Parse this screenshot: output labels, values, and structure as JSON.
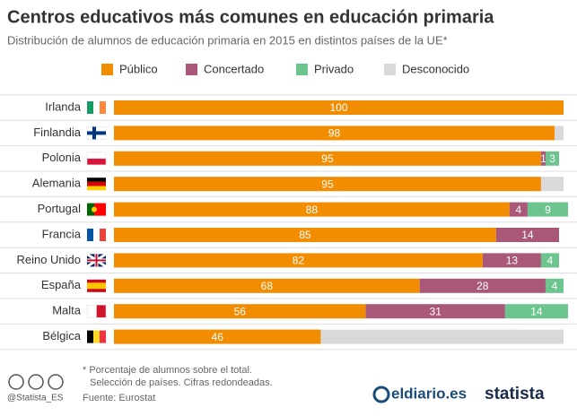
{
  "chart_data": {
    "type": "stacked-bar-horizontal",
    "title": "Centros educativos más comunes en educación primaria",
    "subtitle": "Distribución de alumnos de educación primaria en 2015 en distintos países de la UE*",
    "categories": [
      "Irlanda",
      "Finlandia",
      "Polonia",
      "Alemania",
      "Portugal",
      "Francia",
      "Reino Unido",
      "España",
      "Malta",
      "Bélgica"
    ],
    "series": [
      {
        "name": "Público",
        "color": "#f28c00",
        "show_labels": true,
        "values": [
          100,
          98,
          95,
          95,
          88,
          85,
          82,
          68,
          56,
          46
        ]
      },
      {
        "name": "Concertado",
        "color": "#a9587a",
        "show_labels": true,
        "values": [
          null,
          null,
          1,
          null,
          4,
          14,
          13,
          28,
          31,
          null
        ]
      },
      {
        "name": "Privado",
        "color": "#6cc48e",
        "show_labels": true,
        "values": [
          null,
          null,
          3,
          null,
          9,
          null,
          4,
          4,
          14,
          null
        ]
      },
      {
        "name": "Desconocido",
        "color": "#d9d9d9",
        "show_labels": false,
        "values": [
          null,
          2,
          null,
          5,
          null,
          null,
          null,
          null,
          null,
          54
        ]
      }
    ],
    "xlim": [
      0,
      100
    ],
    "footnote": [
      "* Porcentaje de alumnos sobre el total.",
      "Selección de países. Cifras redondeadas."
    ],
    "source": "Fuente: Eurostat",
    "handle": "@Statista_ES",
    "logos": [
      "eldiario.es",
      "statista"
    ]
  }
}
